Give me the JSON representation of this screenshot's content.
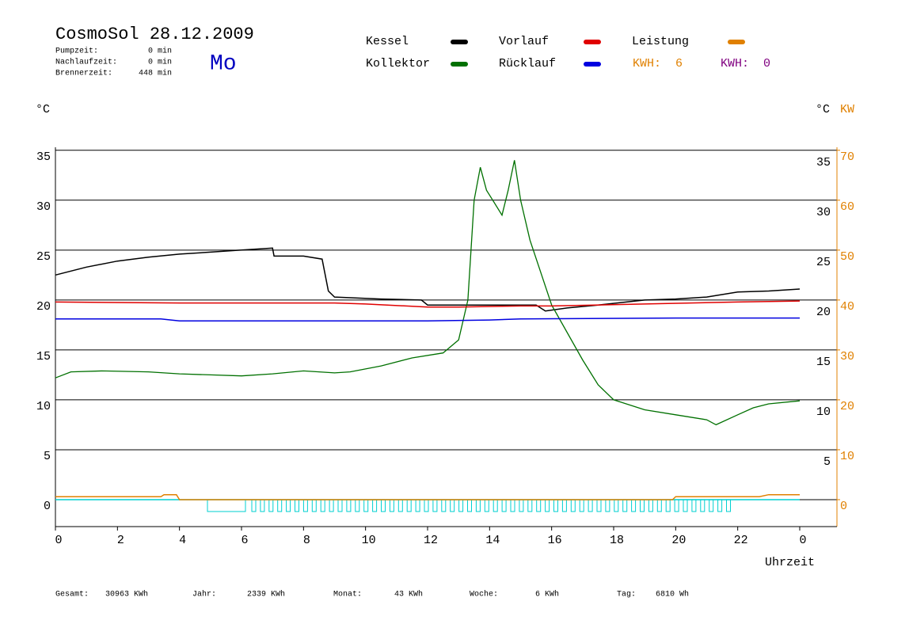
{
  "chart_data": {
    "type": "line",
    "title": "CosmoSol 28.12.2009",
    "day": "Mo",
    "info": [
      {
        "label": "Pumpzeit:",
        "value": "0 min"
      },
      {
        "label": "Nachlaufzeit:",
        "value": "0 min"
      },
      {
        "label": "Brennerzeit:",
        "value": "448 min"
      }
    ],
    "y_label": "°C",
    "y2_label_left": "°C",
    "y2_label": "KW",
    "x_label": "Uhrzeit",
    "kwh_labels": [
      {
        "label": "KWH:",
        "value": 6,
        "color": "#e08000"
      },
      {
        "label": "KWH:",
        "value": 0,
        "color": "#800080"
      }
    ],
    "xlim": [
      0,
      25.2
    ],
    "xticks": [
      0,
      2,
      4,
      6,
      8,
      10,
      12,
      14,
      16,
      18,
      20,
      22,
      {
        "value": 24,
        "label": "0"
      }
    ],
    "ylim": [
      -2.7,
      35.3
    ],
    "yticks": [
      0,
      5,
      10,
      15,
      20,
      25,
      30,
      35
    ],
    "y_right_ticks": [
      5,
      10,
      15,
      20,
      25,
      30,
      35
    ],
    "y2lim": [
      -5.4,
      70.6
    ],
    "y2ticks": [
      0,
      10,
      20,
      30,
      40,
      50,
      60,
      70
    ],
    "grid": true,
    "series": [
      {
        "name": "Kessel",
        "color": "#000000",
        "x": [
          0,
          1,
          2,
          3,
          4,
          5,
          6,
          7,
          7.05,
          8,
          8.6,
          8.8,
          9,
          10.5,
          11.8,
          12,
          13,
          14,
          15,
          15.5,
          15.8,
          16.5,
          17.5,
          19,
          20,
          21,
          22,
          23,
          24
        ],
        "values": [
          22.5,
          23.3,
          23.9,
          24.3,
          24.6,
          24.8,
          25,
          25.2,
          24.4,
          24.4,
          24.1,
          20.9,
          20.3,
          20.1,
          20,
          19.5,
          19.5,
          19.5,
          19.5,
          19.5,
          18.9,
          19.2,
          19.5,
          20,
          20.1,
          20.3,
          20.8,
          20.9,
          21.1
        ]
      },
      {
        "name": "Kollektor",
        "color": "#007000",
        "x": [
          0,
          0.5,
          1.5,
          3,
          4,
          5,
          6,
          7,
          8,
          9,
          9.5,
          10.5,
          11.5,
          12.5,
          13,
          13.3,
          13.5,
          13.7,
          13.9,
          14.1,
          14.4,
          14.6,
          14.8,
          15,
          15.3,
          16,
          17,
          17.5,
          18,
          19,
          20,
          21,
          21.3,
          22,
          22.5,
          23,
          24
        ],
        "values": [
          12.2,
          12.8,
          12.9,
          12.8,
          12.6,
          12.5,
          12.4,
          12.6,
          12.9,
          12.7,
          12.8,
          13.4,
          14.2,
          14.7,
          16,
          20,
          30,
          33.3,
          31,
          30,
          28.5,
          31,
          34,
          30,
          26,
          19.5,
          14,
          11.5,
          10,
          9,
          8.5,
          8,
          7.5,
          8.5,
          9.2,
          9.6,
          9.9
        ]
      },
      {
        "name": "Vorlauf",
        "color": "#e00000",
        "x": [
          0,
          4,
          9,
          10,
          12,
          13,
          15,
          16,
          19,
          22,
          24
        ],
        "values": [
          19.8,
          19.7,
          19.7,
          19.6,
          19.3,
          19.3,
          19.4,
          19.4,
          19.6,
          19.8,
          19.9
        ]
      },
      {
        "name": "Rücklauf",
        "color": "#0000e0",
        "x": [
          0,
          3.4,
          4,
          8,
          12,
          14,
          15,
          20,
          24
        ],
        "values": [
          18.1,
          18.1,
          17.9,
          17.9,
          17.9,
          18,
          18.1,
          18.2,
          18.2
        ]
      },
      {
        "name": "Leistung",
        "color": "#e08000",
        "axis": "y2",
        "x": [
          0,
          3.4,
          3.5,
          3.9,
          4,
          19.9,
          20,
          22.7,
          23,
          24
        ],
        "values": [
          0.6,
          0.6,
          1,
          1,
          0,
          0,
          0.6,
          0.6,
          1,
          1
        ]
      }
    ],
    "footer": [
      {
        "label": "Gesamt:",
        "value": "30963 KWh"
      },
      {
        "label": "Jahr:",
        "value": "2339 KWh"
      },
      {
        "label": "Monat:",
        "value": "43 KWh"
      },
      {
        "label": "Woche:",
        "value": "6 KWh"
      },
      {
        "label": "Tag:",
        "value": "6810 Wh"
      }
    ]
  }
}
